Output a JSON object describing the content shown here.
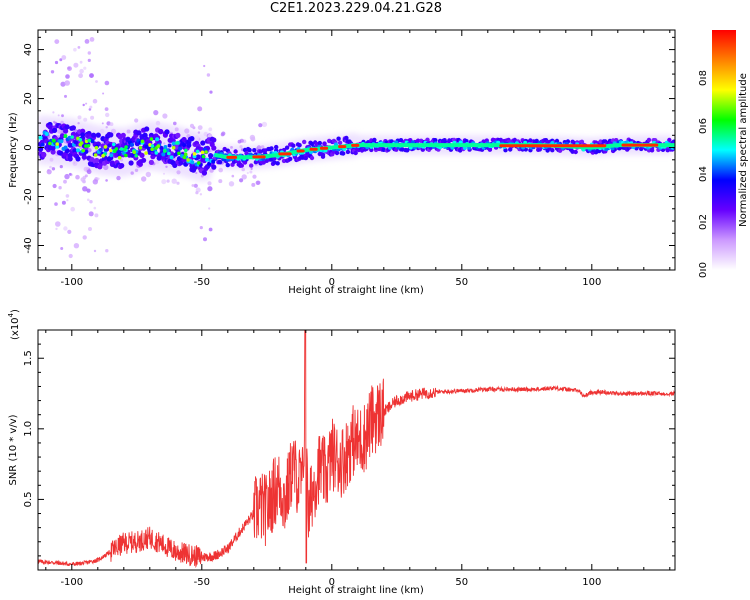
{
  "title": "C2E1.2023.229.04.21.G28",
  "chart_data": [
    {
      "type": "heatmap",
      "xlabel": "Height of straight line (km)",
      "ylabel": "Frequency (Hz)",
      "xlim": [
        -113,
        132
      ],
      "ylim": [
        -50,
        48
      ],
      "xticks": [
        -100,
        -50,
        0,
        50,
        100
      ],
      "yticks": [
        40,
        20,
        0,
        -20,
        -40
      ],
      "colorbar": {
        "label": "Normalized spectral amplitude",
        "range": [
          0,
          1
        ],
        "ticks": [
          0.0,
          0.2,
          0.4,
          0.6,
          0.8
        ],
        "tick_labels": [
          "0.0",
          "0.2",
          "0.4",
          "0.6",
          "0.8"
        ],
        "colormap": [
          "#ffffff",
          "#cc99ff",
          "#6600ff",
          "#0000ff",
          "#00ffff",
          "#00ff00",
          "#ffff00",
          "#ff8000",
          "#ff0000"
        ]
      },
      "ridge": {
        "x": [
          -110,
          -100,
          -90,
          -80,
          -70,
          -60,
          -50,
          -45,
          -40,
          -30,
          -20,
          -10,
          0,
          10,
          20,
          40,
          60,
          80,
          100,
          110,
          132
        ],
        "y": [
          3,
          2,
          -1,
          -2,
          1,
          -1,
          -4,
          -3,
          -4,
          -4,
          -3,
          -1,
          0,
          1,
          1,
          1,
          1,
          1,
          0,
          1,
          1
        ]
      }
    },
    {
      "type": "line",
      "xlabel": "Height of straight line (km)",
      "ylabel": "SNR (10 * v/v)",
      "y_multiplier": "(x10",
      "y_multiplier_exp": "4",
      "xlim": [
        -113,
        132
      ],
      "ylim": [
        0,
        17000
      ],
      "xticks": [
        -100,
        -50,
        0,
        50,
        100
      ],
      "yticks": [
        5000,
        10000,
        15000
      ],
      "ytick_labels": [
        "0.5",
        "1.0",
        "1.5"
      ],
      "color": "#ee3333",
      "series": [
        {
          "x": [
            -113,
            -105,
            -100,
            -95,
            -90,
            -85,
            -80,
            -75,
            -70,
            -65,
            -60,
            -55,
            -50,
            -45,
            -40,
            -35,
            -30,
            -28,
            -25,
            -22,
            -20,
            -18,
            -15,
            -13,
            -11,
            -10,
            -9,
            -8,
            -5,
            -2,
            0,
            3,
            5,
            8,
            10,
            13,
            15,
            18,
            20,
            25,
            30,
            35,
            40,
            50,
            60,
            70,
            80,
            85,
            90,
            95,
            97,
            100,
            105,
            110,
            120,
            132
          ],
          "y": [
            600,
            500,
            400,
            500,
            700,
            1300,
            1900,
            2000,
            2300,
            1800,
            1300,
            1100,
            900,
            1000,
            1500,
            2800,
            4000,
            4500,
            4200,
            5600,
            6000,
            4800,
            7400,
            6300,
            6400,
            15000,
            3400,
            5200,
            7300,
            6700,
            8300,
            7600,
            8000,
            9200,
            9000,
            9500,
            10500,
            11000,
            11200,
            12000,
            12300,
            12500,
            12600,
            12700,
            12800,
            12800,
            12800,
            12900,
            12800,
            12700,
            12300,
            12600,
            12600,
            12500,
            12500,
            12500
          ]
        }
      ]
    }
  ]
}
